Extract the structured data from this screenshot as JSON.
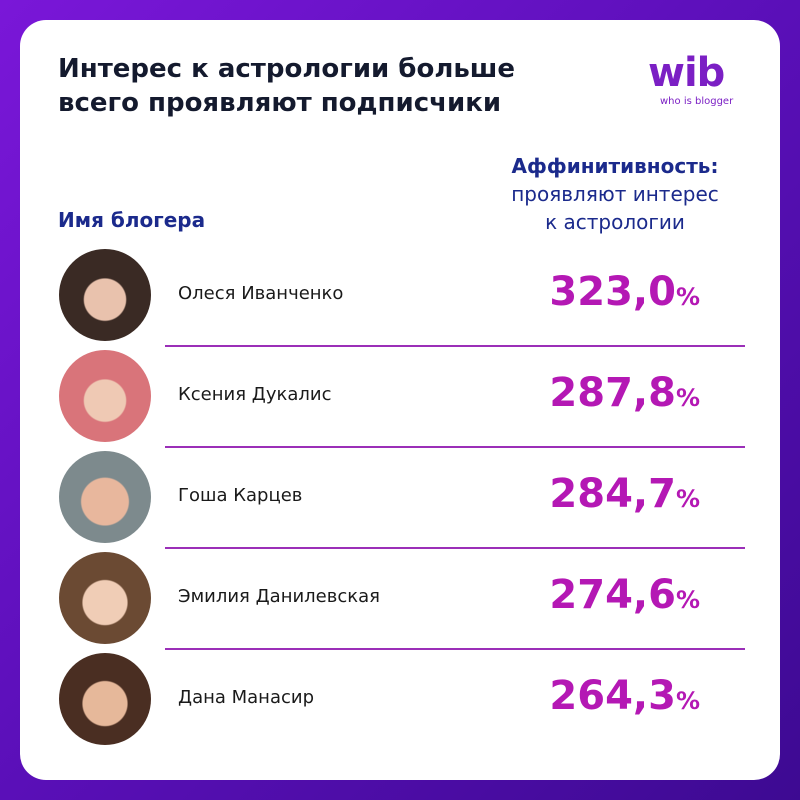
{
  "header": {
    "title_lines": [
      "Интерес к астрологии больше",
      "всего проявляют подписчики"
    ],
    "logo": {
      "mark": "wib",
      "tagline": "who is blogger"
    }
  },
  "table": {
    "columns": {
      "name": "Имя блогера",
      "affinity_title": "Аффинитивность:",
      "affinity_subtitle_lines": [
        "проявляют интерес",
        "к астрологии"
      ]
    },
    "rows": [
      {
        "name": "Олеся Иванченко",
        "value": "323,0",
        "unit": "%"
      },
      {
        "name": "Ксения Дукалис",
        "value": "287,8",
        "unit": "%"
      },
      {
        "name": "Гоша Карцев",
        "value": "284,7",
        "unit": "%"
      },
      {
        "name": "Эмилия Данилевская",
        "value": "274,6",
        "unit": "%"
      },
      {
        "name": "Дана Манасир",
        "value": "264,3",
        "unit": "%"
      }
    ]
  }
}
